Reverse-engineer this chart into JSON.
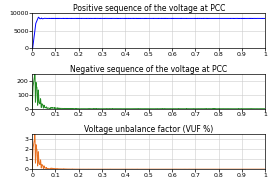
{
  "title1": "Positive sequence of the voltage at PCC",
  "title2": "Negative sequence of the voltage at PCC",
  "title3": "Voltage unbalance factor (VUF %)",
  "color1": "#0000FF",
  "color2": "#228B22",
  "color3": "#E87020",
  "xlim": [
    0,
    1
  ],
  "ylim1": [
    0,
    10000
  ],
  "ylim2": [
    0,
    250
  ],
  "ylim3": [
    0,
    3.5
  ],
  "yticks1": [
    0,
    5000,
    10000
  ],
  "yticks2": [
    0,
    100,
    200
  ],
  "yticks3": [
    0,
    1,
    2,
    3
  ],
  "xticks": [
    0,
    0.1,
    0.2,
    0.3,
    0.4,
    0.5,
    0.6,
    0.7,
    0.8,
    0.9,
    1
  ],
  "title_fontsize": 5.5,
  "tick_fontsize": 4.5,
  "background_color": "#FFFFFF",
  "grid_color": "#CCCCCC"
}
